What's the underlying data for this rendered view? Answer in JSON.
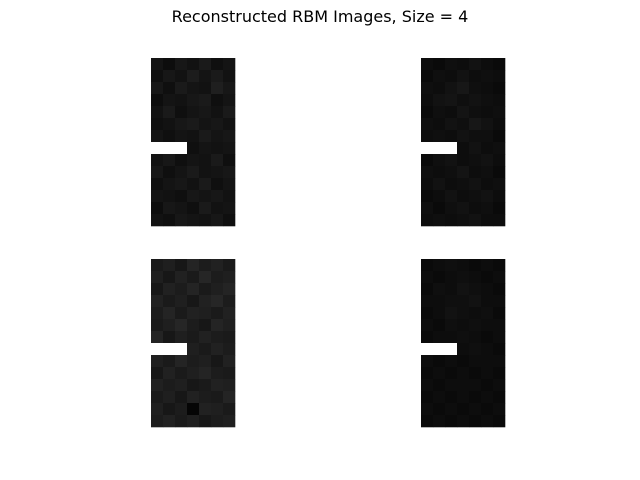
{
  "chart_data": {
    "type": "heatmap",
    "title": "Reconstructed RBM Images, Size = 4",
    "colormap": "gray",
    "value_range": [
      0,
      1
    ],
    "grid": false,
    "axes_visible": false,
    "layout": "2x2",
    "panels": [
      {
        "rows": 14,
        "cols": 7,
        "values": [
          [
            0.08,
            0.05,
            0.09,
            0.07,
            0.1,
            0.06,
            0.08
          ],
          [
            0.06,
            0.09,
            0.07,
            0.11,
            0.08,
            0.1,
            0.07
          ],
          [
            0.09,
            0.06,
            0.1,
            0.08,
            0.07,
            0.12,
            0.09
          ],
          [
            0.05,
            0.08,
            0.07,
            0.09,
            0.1,
            0.06,
            0.08
          ],
          [
            0.07,
            0.1,
            0.06,
            0.08,
            0.09,
            0.07,
            0.1
          ],
          [
            0.06,
            0.07,
            0.09,
            0.1,
            0.08,
            0.09,
            0.07
          ],
          [
            0.08,
            0.06,
            0.08,
            0.07,
            0.1,
            0.08,
            0.09
          ],
          [
            1.0,
            1.0,
            1.0,
            0.06,
            0.08,
            0.07,
            0.08
          ],
          [
            0.07,
            0.09,
            0.06,
            0.08,
            0.07,
            0.1,
            0.06
          ],
          [
            0.09,
            0.06,
            0.08,
            0.1,
            0.07,
            0.08,
            0.09
          ],
          [
            0.06,
            0.08,
            0.09,
            0.07,
            0.1,
            0.06,
            0.08
          ],
          [
            0.08,
            0.07,
            0.06,
            0.09,
            0.08,
            0.09,
            0.07
          ],
          [
            0.05,
            0.09,
            0.08,
            0.06,
            0.1,
            0.07,
            0.08
          ],
          [
            0.07,
            0.06,
            0.09,
            0.08,
            0.07,
            0.09,
            0.06
          ]
        ]
      },
      {
        "rows": 14,
        "cols": 7,
        "values": [
          [
            0.05,
            0.04,
            0.06,
            0.05,
            0.07,
            0.05,
            0.04
          ],
          [
            0.04,
            0.06,
            0.05,
            0.07,
            0.05,
            0.06,
            0.05
          ],
          [
            0.06,
            0.05,
            0.07,
            0.09,
            0.06,
            0.05,
            0.04
          ],
          [
            0.05,
            0.07,
            0.08,
            0.06,
            0.07,
            0.06,
            0.05
          ],
          [
            0.04,
            0.06,
            0.05,
            0.08,
            0.06,
            0.05,
            0.06
          ],
          [
            0.06,
            0.05,
            0.07,
            0.06,
            0.09,
            0.07,
            0.05
          ],
          [
            0.05,
            0.06,
            0.05,
            0.07,
            0.06,
            0.06,
            0.04
          ],
          [
            1.0,
            1.0,
            1.0,
            0.05,
            0.07,
            0.05,
            0.06
          ],
          [
            0.04,
            0.06,
            0.07,
            0.05,
            0.06,
            0.07,
            0.05
          ],
          [
            0.06,
            0.05,
            0.06,
            0.08,
            0.05,
            0.06,
            0.04
          ],
          [
            0.05,
            0.07,
            0.05,
            0.06,
            0.07,
            0.05,
            0.06
          ],
          [
            0.04,
            0.05,
            0.07,
            0.05,
            0.06,
            0.07,
            0.05
          ],
          [
            0.06,
            0.04,
            0.06,
            0.07,
            0.05,
            0.06,
            0.04
          ],
          [
            0.05,
            0.06,
            0.05,
            0.06,
            0.07,
            0.05,
            0.05
          ]
        ]
      },
      {
        "rows": 14,
        "cols": 7,
        "values": [
          [
            0.1,
            0.12,
            0.09,
            0.14,
            0.11,
            0.13,
            0.1
          ],
          [
            0.12,
            0.09,
            0.13,
            0.1,
            0.15,
            0.11,
            0.12
          ],
          [
            0.09,
            0.13,
            0.11,
            0.14,
            0.1,
            0.12,
            0.14
          ],
          [
            0.13,
            0.1,
            0.12,
            0.09,
            0.13,
            0.15,
            0.11
          ],
          [
            0.11,
            0.14,
            0.1,
            0.13,
            0.12,
            0.1,
            0.13
          ],
          [
            0.1,
            0.12,
            0.15,
            0.11,
            0.09,
            0.14,
            0.12
          ],
          [
            0.14,
            0.09,
            0.12,
            0.1,
            0.13,
            0.11,
            0.1
          ],
          [
            1.0,
            1.0,
            1.0,
            0.12,
            0.1,
            0.13,
            0.11
          ],
          [
            0.12,
            0.1,
            0.14,
            0.11,
            0.12,
            0.09,
            0.13
          ],
          [
            0.09,
            0.13,
            0.1,
            0.12,
            0.14,
            0.11,
            0.1
          ],
          [
            0.13,
            0.11,
            0.12,
            0.09,
            0.1,
            0.13,
            0.12
          ],
          [
            0.1,
            0.12,
            0.09,
            0.13,
            0.11,
            0.1,
            0.14
          ],
          [
            0.12,
            0.09,
            0.11,
            0.02,
            0.13,
            0.12,
            0.1
          ],
          [
            0.11,
            0.13,
            0.1,
            0.12,
            0.09,
            0.11,
            0.12
          ]
        ]
      },
      {
        "rows": 14,
        "cols": 7,
        "values": [
          [
            0.04,
            0.05,
            0.06,
            0.05,
            0.04,
            0.05,
            0.04
          ],
          [
            0.05,
            0.04,
            0.05,
            0.06,
            0.05,
            0.04,
            0.05
          ],
          [
            0.04,
            0.06,
            0.05,
            0.07,
            0.06,
            0.05,
            0.04
          ],
          [
            0.05,
            0.05,
            0.06,
            0.06,
            0.07,
            0.05,
            0.05
          ],
          [
            0.04,
            0.05,
            0.07,
            0.06,
            0.05,
            0.06,
            0.04
          ],
          [
            0.05,
            0.04,
            0.06,
            0.05,
            0.06,
            0.05,
            0.05
          ],
          [
            0.04,
            0.05,
            0.05,
            0.06,
            0.05,
            0.04,
            0.05
          ],
          [
            1.0,
            1.0,
            1.0,
            0.05,
            0.06,
            0.05,
            0.04
          ],
          [
            0.05,
            0.04,
            0.05,
            0.04,
            0.05,
            0.05,
            0.05
          ],
          [
            0.04,
            0.05,
            0.04,
            0.05,
            0.04,
            0.05,
            0.04
          ],
          [
            0.05,
            0.04,
            0.05,
            0.05,
            0.05,
            0.04,
            0.05
          ],
          [
            0.04,
            0.05,
            0.04,
            0.05,
            0.04,
            0.05,
            0.04
          ],
          [
            0.05,
            0.04,
            0.05,
            0.04,
            0.05,
            0.04,
            0.05
          ],
          [
            0.04,
            0.05,
            0.04,
            0.05,
            0.04,
            0.05,
            0.04
          ]
        ]
      }
    ]
  }
}
